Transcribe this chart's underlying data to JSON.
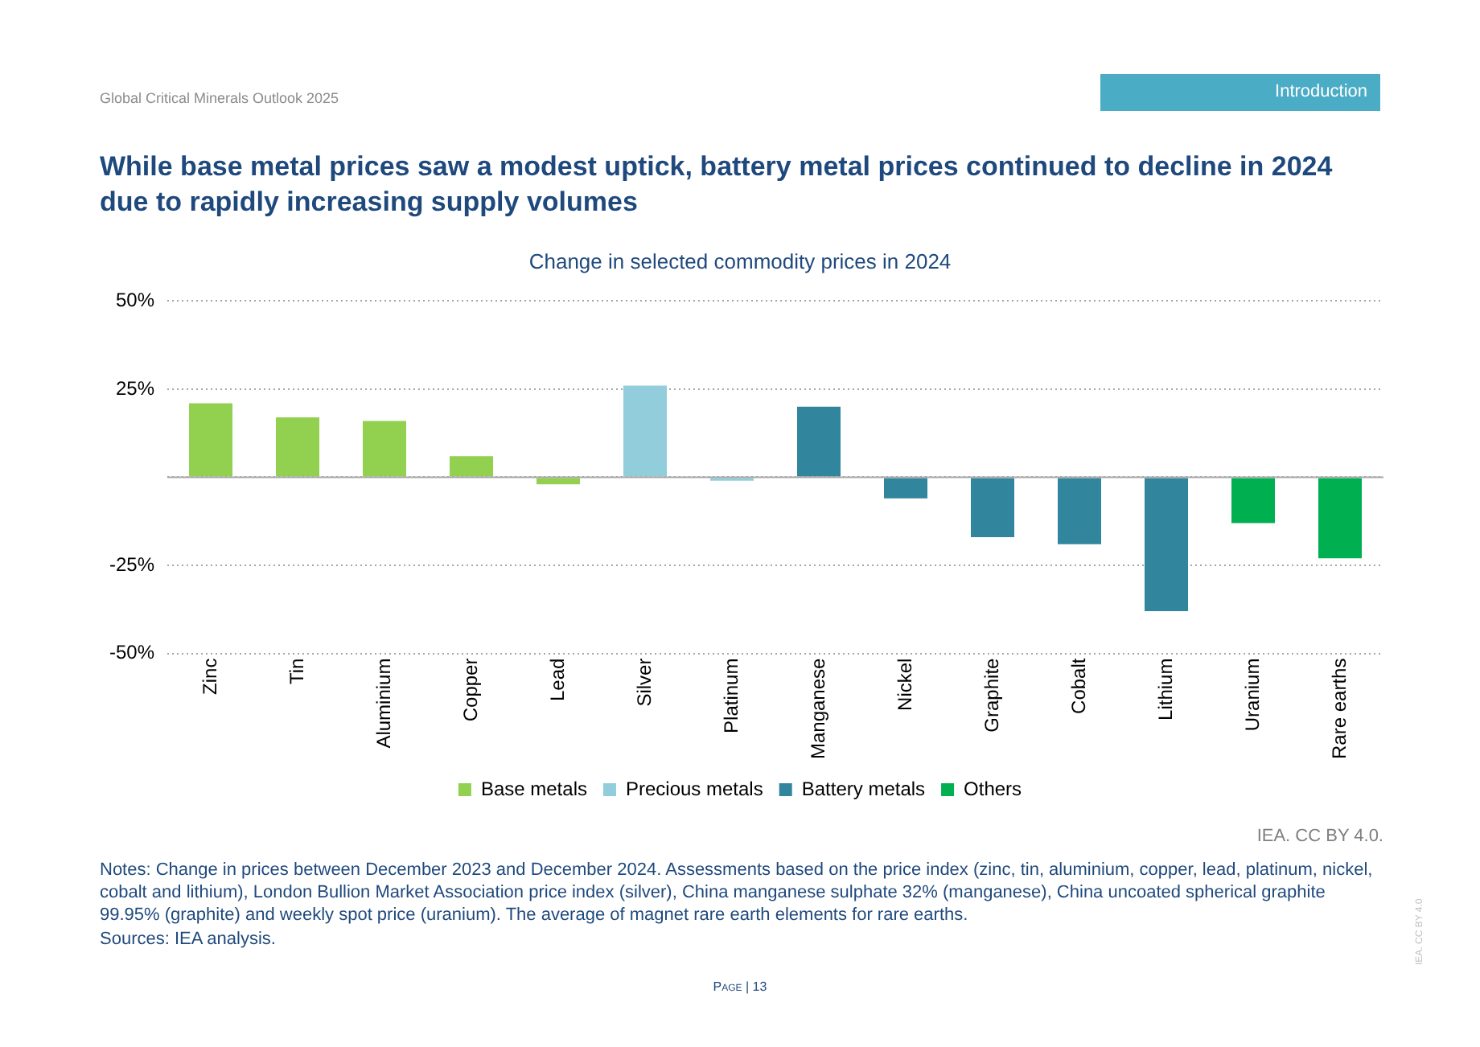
{
  "chart_data": {
    "type": "bar",
    "title": "Change in selected commodity prices in 2024",
    "subtitle": "While base metal prices saw a modest uptick, battery metal prices continued to decline in 2024 due to rapidly increasing supply volumes",
    "categories": [
      "Zinc",
      "Tin",
      "Aluminium",
      "Copper",
      "Lead",
      "Silver",
      "Platinum",
      "Manganese",
      "Nickel",
      "Graphite",
      "Cobalt",
      "Lithium",
      "Uranium",
      "Rare earths"
    ],
    "series": [
      {
        "name": "Base metals",
        "color": "#92d050",
        "values": [
          21,
          17,
          16,
          6,
          -2,
          null,
          null,
          null,
          null,
          null,
          null,
          null,
          null,
          null
        ]
      },
      {
        "name": "Precious metals",
        "color": "#92cddc",
        "values": [
          null,
          null,
          null,
          null,
          null,
          26,
          -1,
          null,
          null,
          null,
          null,
          null,
          null,
          null
        ]
      },
      {
        "name": "Battery metals",
        "color": "#31859c",
        "values": [
          null,
          null,
          null,
          null,
          null,
          null,
          null,
          20,
          -6,
          -17,
          -19,
          -38,
          null,
          null
        ]
      },
      {
        "name": "Others",
        "color": "#00b050",
        "values": [
          null,
          null,
          null,
          null,
          null,
          null,
          null,
          null,
          null,
          null,
          null,
          null,
          -13,
          -23
        ]
      }
    ],
    "ylim": [
      -50,
      50
    ],
    "yticks": [
      {
        "value": -50,
        "label": "-50%"
      },
      {
        "value": -25,
        "label": "-25%"
      },
      {
        "value": 0,
        "label": null
      },
      {
        "value": 25,
        "label": "25%"
      },
      {
        "value": 50,
        "label": "50%"
      }
    ],
    "grid": "y",
    "legend": "bottom",
    "ref_lines": [
      {
        "axis": "y",
        "value": 0,
        "color": "#a6a6a6",
        "line_style": "solid"
      }
    ],
    "annotations": [
      "Global Critical Minerals Outlook 2025",
      "Introduction",
      "IEA. CC BY 4.0.",
      "Notes: Change in prices between December 2023 and December 2024. Assessments based on the price index (zinc, tin, aluminium, copper, lead, platinum, nickel, cobalt and lithium), London Bullion Market Association price index (silver), China manganese sulphate 32% (manganese), China uncoated spherical graphite 99.95% (graphite) and weekly spot price (uranium). The average of magnet rare earth elements for rare earths.",
      "Sources: IEA analysis.",
      "Page | 13",
      "IEA. CC BY 4.0"
    ]
  }
}
